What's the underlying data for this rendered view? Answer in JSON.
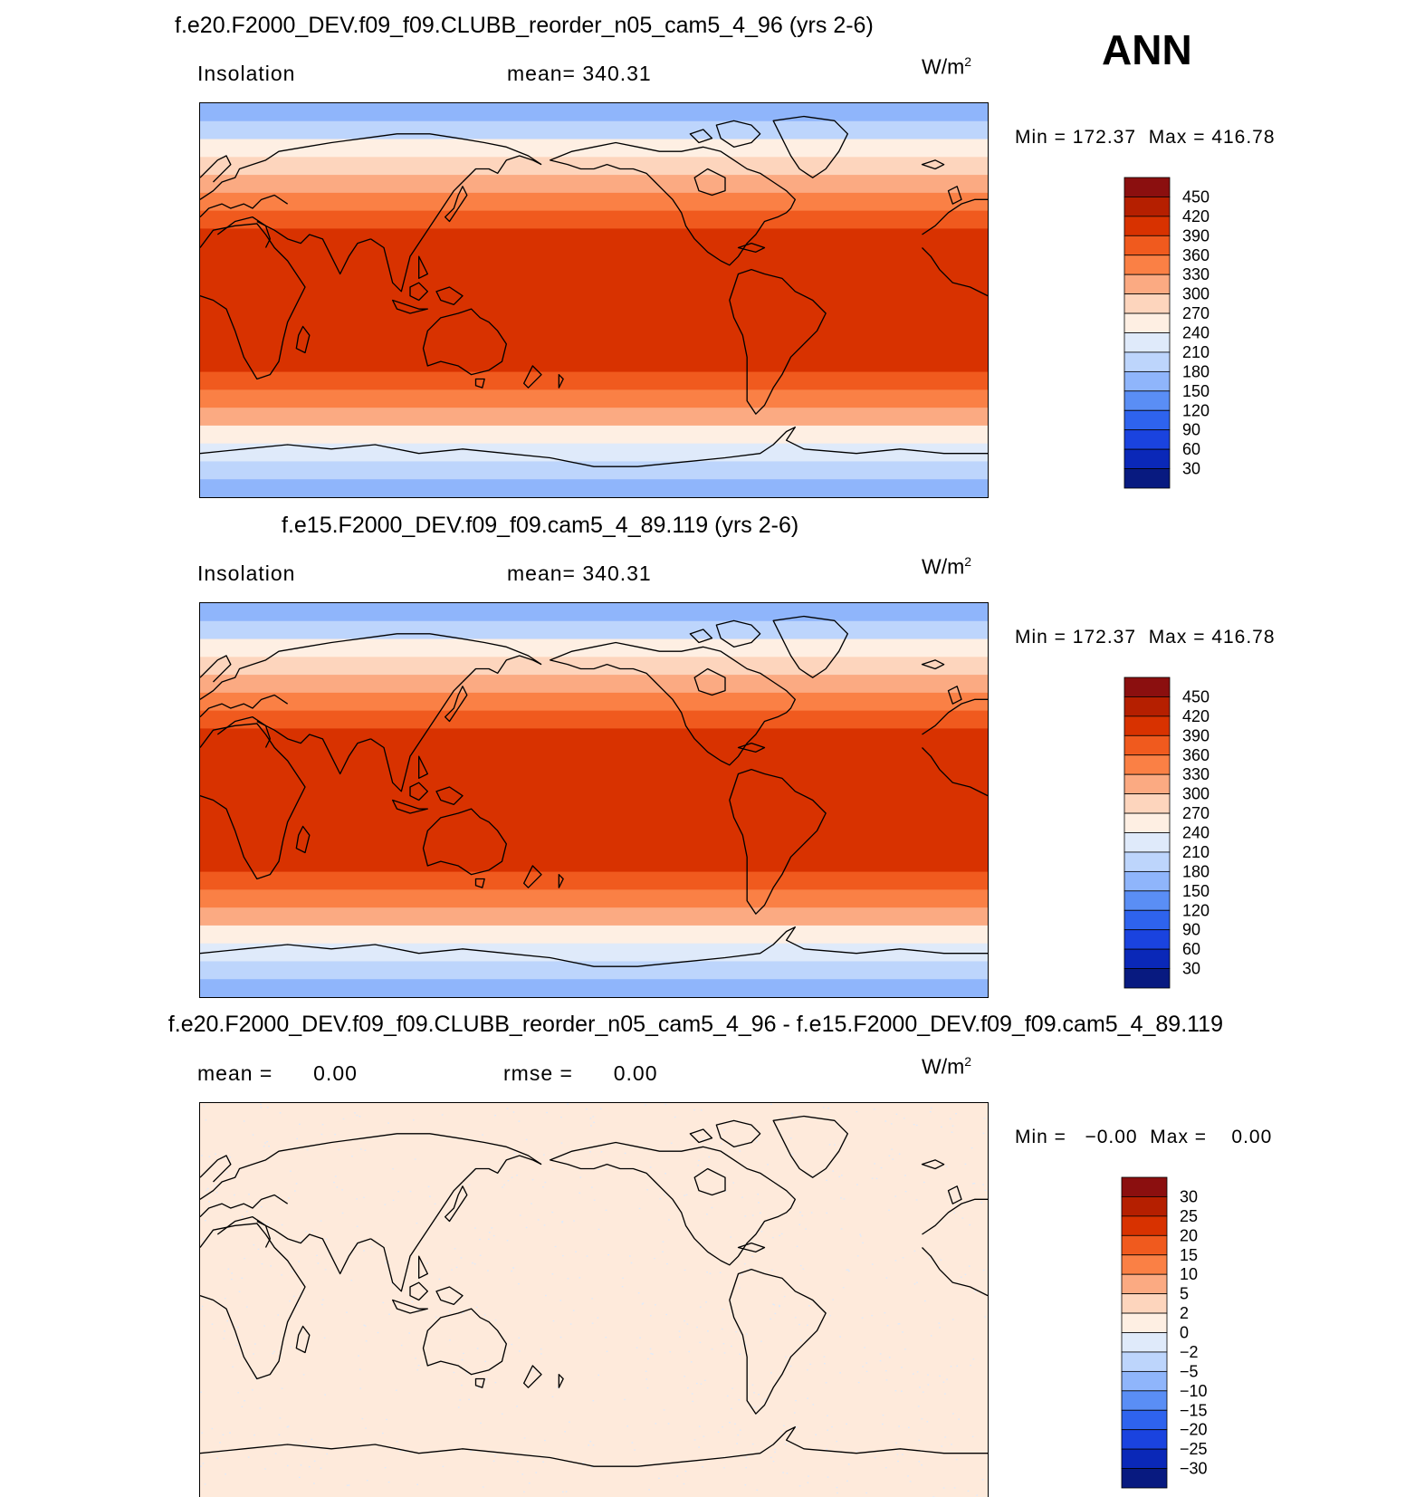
{
  "season": "ANN",
  "units": {
    "base": "W/m",
    "exp": "2"
  },
  "chart_data": [
    {
      "type": "heatmap",
      "title": "f.e20.F2000_DEV.f09_f09.CLUBB_reorder_n05_cam5_4_96 (yrs 2-6)",
      "variable": "Insolation",
      "mean_label": "mean=",
      "mean_value": "340.31",
      "min_label": "Min =",
      "min_value": "172.37",
      "max_label": "Max =",
      "max_value": "416.78",
      "colorbar_levels": [
        "450",
        "420",
        "390",
        "360",
        "330",
        "300",
        "270",
        "240",
        "210",
        "180",
        "150",
        "120",
        "90",
        "60",
        "30"
      ],
      "colorbar_colors": [
        "#8b0f0f",
        "#b51f00",
        "#d83200",
        "#f05a1e",
        "#fa8045",
        "#fbaa82",
        "#fdd5bd",
        "#feefe3",
        "#dfeafa",
        "#bdd5fc",
        "#8fb5fb",
        "#5a8ef5",
        "#2e63ee",
        "#1a43df",
        "#0a28b8",
        "#081a80"
      ],
      "latitude_band_values": [
        168,
        205,
        245,
        285,
        320,
        350,
        375,
        395,
        410,
        416,
        416,
        416,
        416,
        410,
        395,
        375,
        345,
        310,
        265,
        225,
        190,
        168
      ]
    },
    {
      "type": "heatmap",
      "title": "f.e15.F2000_DEV.f09_f09.cam5_4_89.119 (yrs 2-6)",
      "variable": "Insolation",
      "mean_label": "mean=",
      "mean_value": "340.31",
      "min_label": "Min =",
      "min_value": "172.37",
      "max_label": "Max =",
      "max_value": "416.78",
      "colorbar_levels": [
        "450",
        "420",
        "390",
        "360",
        "330",
        "300",
        "270",
        "240",
        "210",
        "180",
        "150",
        "120",
        "90",
        "60",
        "30"
      ],
      "colorbar_colors": [
        "#8b0f0f",
        "#b51f00",
        "#d83200",
        "#f05a1e",
        "#fa8045",
        "#fbaa82",
        "#fdd5bd",
        "#feefe3",
        "#dfeafa",
        "#bdd5fc",
        "#8fb5fb",
        "#5a8ef5",
        "#2e63ee",
        "#1a43df",
        "#0a28b8",
        "#081a80"
      ],
      "latitude_band_values": [
        168,
        205,
        245,
        285,
        320,
        350,
        375,
        395,
        410,
        416,
        416,
        416,
        416,
        410,
        395,
        375,
        345,
        310,
        265,
        225,
        190,
        168
      ]
    },
    {
      "type": "heatmap",
      "title": "f.e20.F2000_DEV.f09_f09.CLUBB_reorder_n05_cam5_4_96 - f.e15.F2000_DEV.f09_f09.cam5_4_89.119",
      "variable": "",
      "mean_label": "mean =",
      "mean_value": "0.00",
      "rmse_label": "rmse =",
      "rmse_value": "0.00",
      "min_label": "Min =",
      "min_value": "−0.00",
      "max_label": "Max =",
      "max_value": "0.00",
      "colorbar_levels": [
        "30",
        "25",
        "20",
        "15",
        "10",
        "5",
        "2",
        "0",
        "−2",
        "−5",
        "−10",
        "−15",
        "−20",
        "−25",
        "−30"
      ],
      "colorbar_colors": [
        "#8b0f0f",
        "#b51f00",
        "#d83200",
        "#f05a1e",
        "#fa8045",
        "#fbaa82",
        "#fdd5bd",
        "#feefe3",
        "#dfeafa",
        "#bdd5fc",
        "#8fb5fb",
        "#5a8ef5",
        "#2e63ee",
        "#1a43df",
        "#0a28b8",
        "#081a80"
      ],
      "field_fill": "#feeadb",
      "speckle_fill": "#dfeafa"
    }
  ]
}
